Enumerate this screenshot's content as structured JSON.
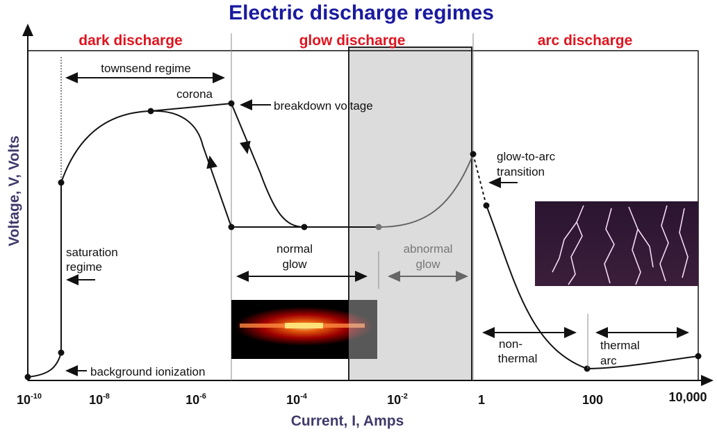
{
  "title": "Electric discharge regimes",
  "regions": [
    "dark discharge",
    "glow discharge",
    "arc discharge"
  ],
  "annotations": {
    "townsend": "townsend regime",
    "corona": "corona",
    "breakdown": "breakdown voltage",
    "glow_to_arc": [
      "glow-to-arc",
      "transition"
    ],
    "saturation": [
      "saturation",
      "regime"
    ],
    "background": "background ionization",
    "normal_glow": [
      "normal",
      "glow"
    ],
    "abnormal_glow": [
      "abnormal",
      "glow"
    ],
    "non_thermal": [
      "non-",
      "thermal"
    ],
    "thermal_arc": [
      "thermal",
      "arc"
    ]
  },
  "x_label": "Current, I, Amps",
  "y_label": "Voltage, V, Volts",
  "x_ticks": [
    {
      "base": "10",
      "exp": "-10"
    },
    {
      "base": "10",
      "exp": "-8"
    },
    {
      "base": "10",
      "exp": "-6"
    },
    {
      "base": "10",
      "exp": "-4"
    },
    {
      "base": "10",
      "exp": "-2"
    },
    {
      "base": "1"
    },
    {
      "base": "100"
    },
    {
      "base": "10,000"
    }
  ]
}
